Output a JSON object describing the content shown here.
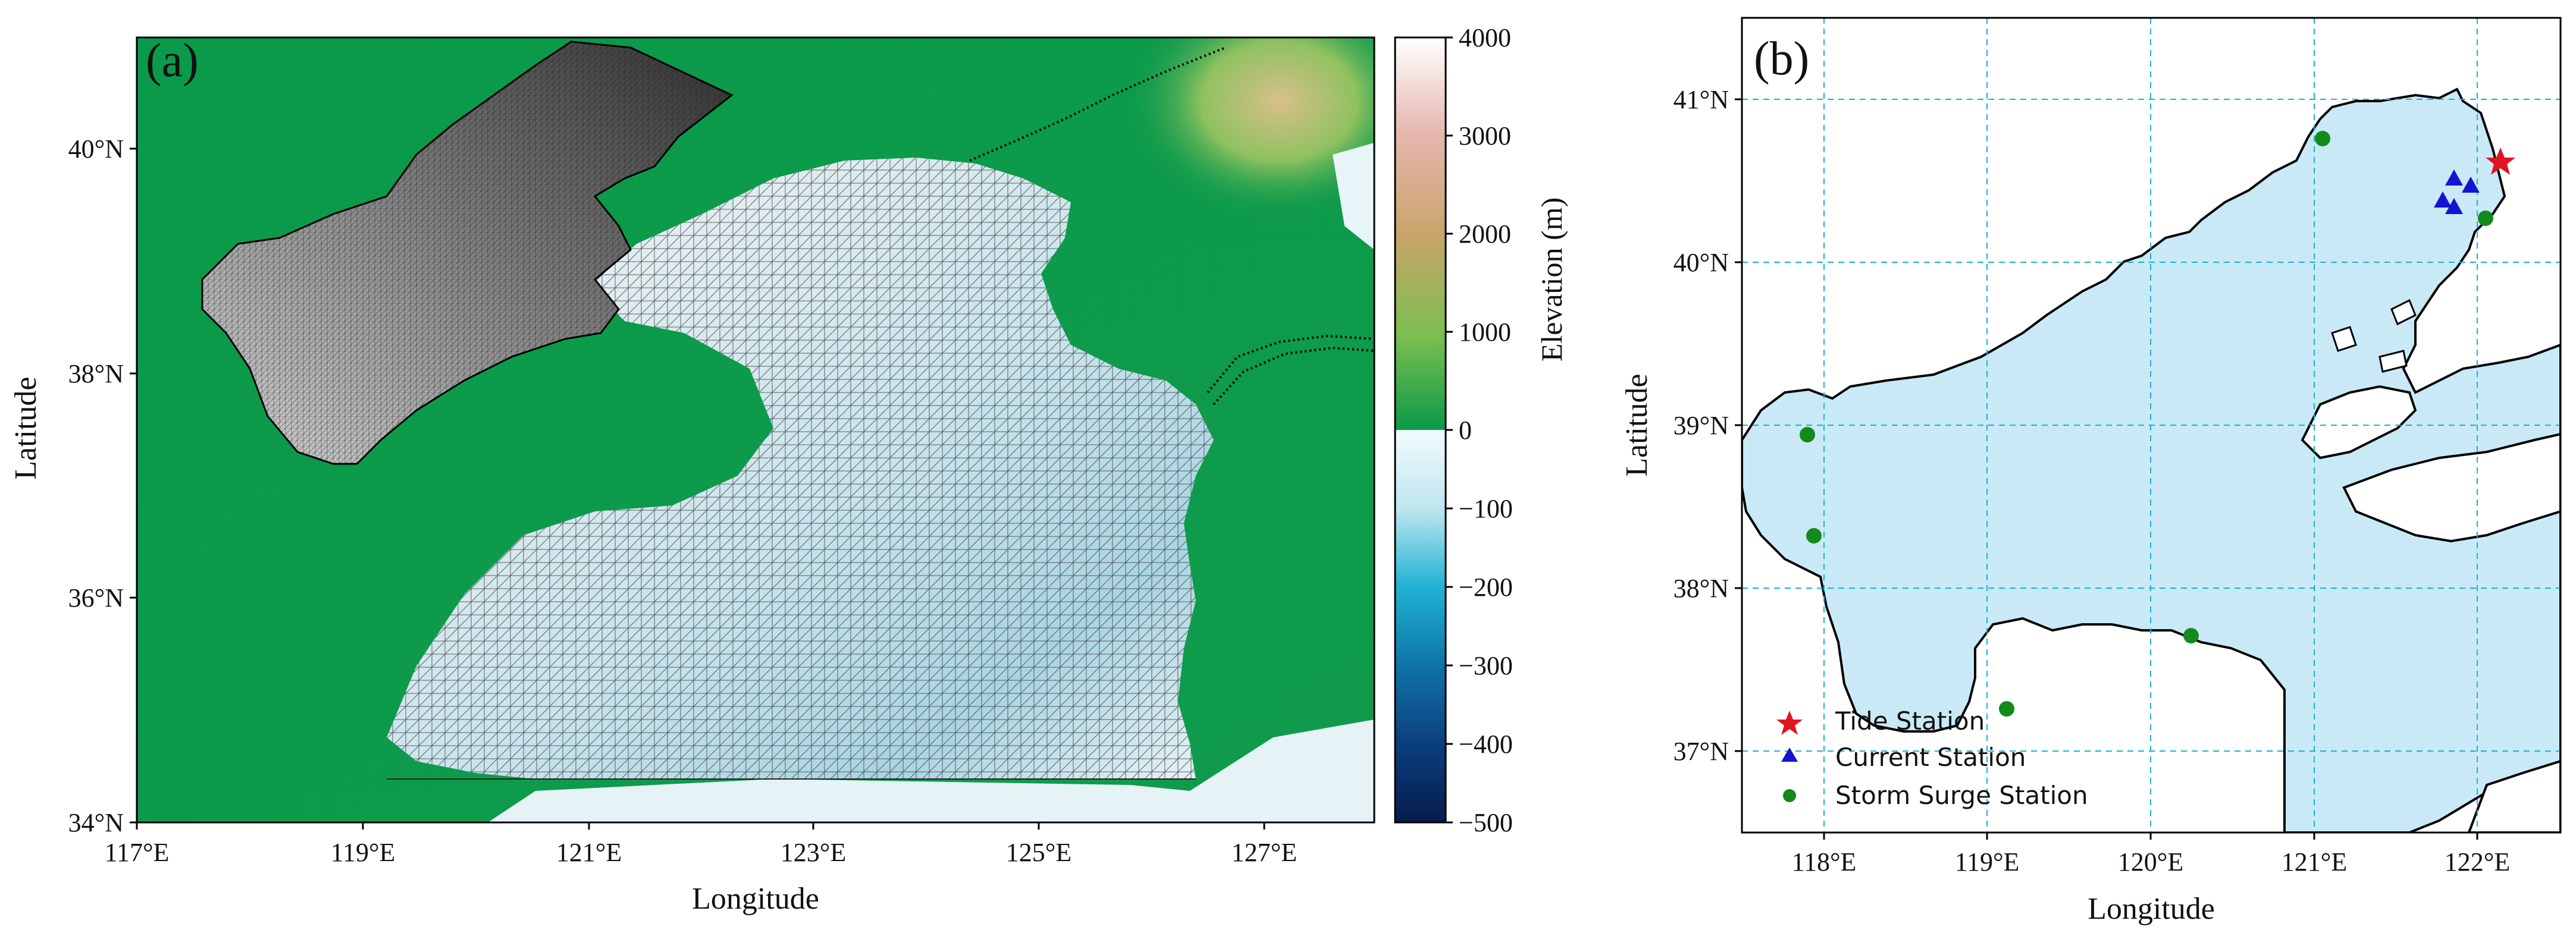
{
  "panel_a": {
    "label": "(a)",
    "x_ticks": [
      "117°E",
      "119°E",
      "121°E",
      "123°E",
      "125°E",
      "127°E"
    ],
    "y_ticks": [
      "34°N",
      "36°N",
      "38°N",
      "40°N"
    ],
    "xlabel": "Longitude",
    "ylabel": "Latitude",
    "colorbar": {
      "label": "Elevation (m)",
      "ticks": [
        "4000",
        "3000",
        "2000",
        "1000",
        "0",
        "−100",
        "−200",
        "−300",
        "−400",
        "−500"
      ]
    },
    "colors": {
      "land_low": "#0a9a4a",
      "land_mid": "#6fbf5a",
      "land_high": "#c9b37a",
      "sea_shallow": "#e8f6fa",
      "sea_deep": "#5fb6d0",
      "mesh": "#333333"
    }
  },
  "panel_b": {
    "label": "(b)",
    "x_ticks": [
      "118°E",
      "119°E",
      "120°E",
      "121°E",
      "122°E"
    ],
    "y_ticks": [
      "37°N",
      "38°N",
      "39°N",
      "40°N",
      "41°N"
    ],
    "xlabel": "Longitude",
    "ylabel": "Latitude",
    "legend": [
      {
        "label": "Tide Station",
        "marker": "star",
        "color": "#e0141e"
      },
      {
        "label": "Current Station",
        "marker": "triangle",
        "color": "#1414d2"
      },
      {
        "label": "Storm Surge Station",
        "marker": "circle",
        "color": "#138a1c"
      }
    ],
    "sea_color": "#c9e9f6",
    "grid_color": "#17b3d1"
  },
  "chart_data": [
    {
      "type": "map",
      "panel": "a",
      "xlim": [
        117,
        128
      ],
      "ylim": [
        34,
        41
      ],
      "colorbar_range": [
        -500,
        4000
      ]
    },
    {
      "type": "scatter",
      "panel": "b",
      "xlim": [
        117.5,
        122.5
      ],
      "ylim": [
        36.5,
        41.5
      ],
      "grid": true,
      "series": [
        {
          "name": "Tide Station",
          "marker": "star",
          "points": [
            {
              "x": 122.15,
              "y": 40.63
            }
          ]
        },
        {
          "name": "Current Station",
          "marker": "triangle",
          "points": [
            {
              "x": 121.85,
              "y": 40.49
            },
            {
              "x": 121.95,
              "y": 40.45
            },
            {
              "x": 121.78,
              "y": 40.36
            },
            {
              "x": 121.85,
              "y": 40.32
            }
          ]
        },
        {
          "name": "Storm Surge Station",
          "marker": "circle",
          "points": [
            {
              "x": 121.05,
              "y": 40.76
            },
            {
              "x": 122.05,
              "y": 40.27
            },
            {
              "x": 117.9,
              "y": 38.95
            },
            {
              "x": 117.94,
              "y": 38.33
            },
            {
              "x": 120.25,
              "y": 37.71
            },
            {
              "x": 119.12,
              "y": 37.27
            }
          ]
        }
      ]
    }
  ]
}
